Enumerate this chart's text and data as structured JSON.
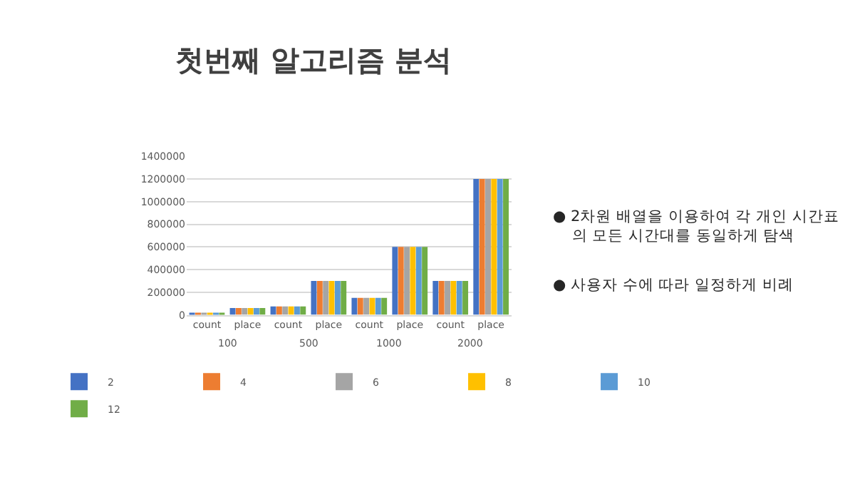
{
  "chart_data": {
    "type": "bar",
    "title": "첫번째 알고리즘 분석",
    "categories": [
      "count",
      "place",
      "count",
      "place",
      "count",
      "place",
      "count",
      "place"
    ],
    "series": [
      {
        "name": "2",
        "color": "#4472c4",
        "values": [
          20000,
          60000,
          75000,
          300000,
          150000,
          600000,
          300000,
          1200000
        ]
      },
      {
        "name": "4",
        "color": "#ed7d31",
        "values": [
          20000,
          60000,
          75000,
          300000,
          150000,
          600000,
          300000,
          1200000
        ]
      },
      {
        "name": "6",
        "color": "#a5a5a5",
        "values": [
          20000,
          60000,
          75000,
          300000,
          150000,
          600000,
          300000,
          1200000
        ]
      },
      {
        "name": "8",
        "color": "#ffc000",
        "values": [
          20000,
          60000,
          75000,
          300000,
          150000,
          600000,
          300000,
          1200000
        ]
      },
      {
        "name": "10",
        "color": "#5b9bd5",
        "values": [
          20000,
          60000,
          75000,
          300000,
          150000,
          600000,
          300000,
          1200000
        ]
      },
      {
        "name": "12",
        "color": "#70ad47",
        "values": [
          20000,
          60000,
          75000,
          300000,
          150000,
          600000,
          300000,
          1200000
        ]
      }
    ],
    "ylim": [
      0,
      1400000
    ],
    "yticks": [
      0,
      200000,
      400000,
      600000,
      800000,
      1000000,
      1200000,
      1400000
    ],
    "grid": "y",
    "legend": "bottom",
    "annotations": [
      "100",
      "500",
      "1000",
      "2000",
      "● 2차원 배열을 이용하여 각 개인 시간표\n의 모든 시간대를 동일하게 탐색",
      "● 사용자 수에 따라 일정하게 비례"
    ]
  }
}
